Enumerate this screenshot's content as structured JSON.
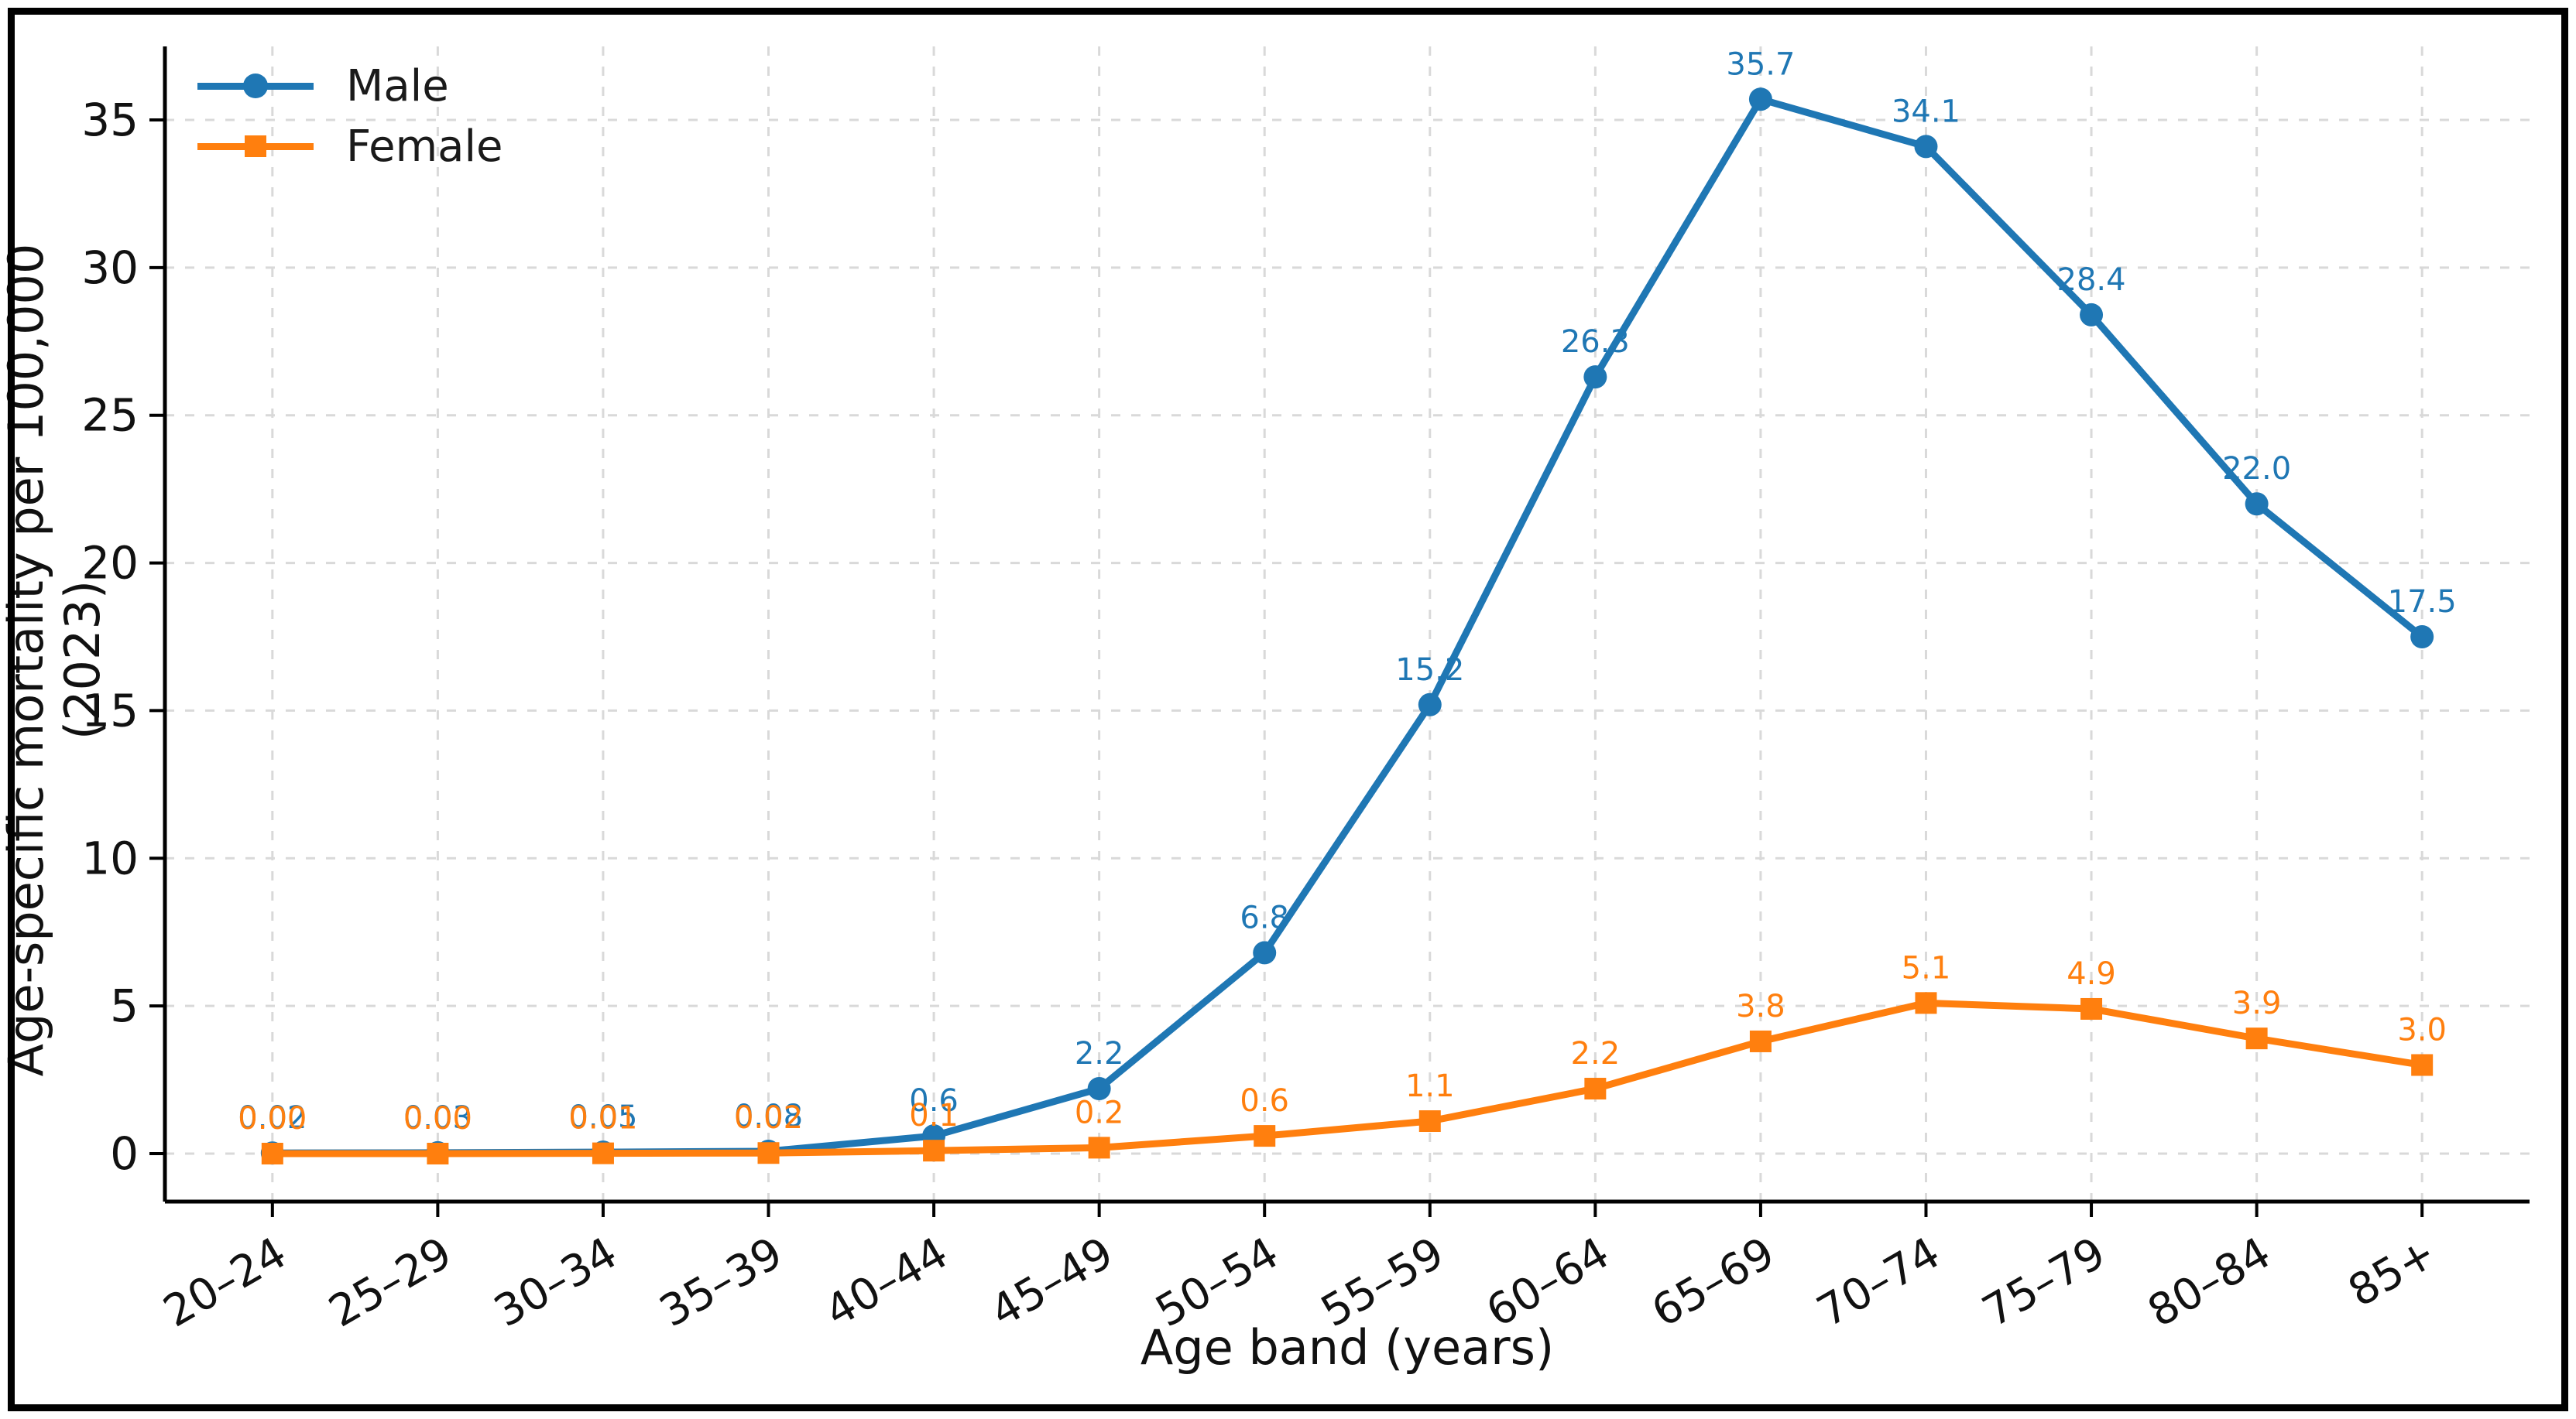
{
  "figure": {
    "border_color": "#000000",
    "background": "#ffffff",
    "grid_color": "#d9d9d9",
    "text_color": "#111111"
  },
  "chart_data": {
    "type": "line",
    "title": "",
    "xlabel": "Age band (years)",
    "ylabel": "Age-specific mortality per 100,000 (2023)",
    "categories": [
      "20–24",
      "25–29",
      "30–34",
      "35–39",
      "40–44",
      "45–49",
      "50–54",
      "55–59",
      "60–64",
      "65–69",
      "70–74",
      "75–79",
      "80–84",
      "85+"
    ],
    "yticks": [
      0,
      5,
      10,
      15,
      20,
      25,
      30,
      35
    ],
    "ylim": [
      -1.6,
      37.5
    ],
    "grid": "dashed-both-axes",
    "legend_position": "upper-left",
    "series": [
      {
        "name": "Male",
        "color": "#1f77b4",
        "marker": "circle",
        "values": [
          0.02,
          0.03,
          0.05,
          0.08,
          0.6,
          2.2,
          6.8,
          15.2,
          26.3,
          35.7,
          34.1,
          28.4,
          22.0,
          17.5
        ],
        "point_labels": [
          "0.02",
          "0.03",
          "0.05",
          "0.08",
          "0.6",
          "2.2",
          "6.8",
          "15.2",
          "26.3",
          "35.7",
          "34.1",
          "28.4",
          "22.0",
          "17.5"
        ]
      },
      {
        "name": "Female",
        "color": "#ff7f0e",
        "marker": "square",
        "values": [
          0.0,
          0.0,
          0.01,
          0.02,
          0.1,
          0.2,
          0.6,
          1.1,
          2.2,
          3.8,
          5.1,
          4.9,
          3.9,
          3.0
        ],
        "point_labels": [
          "0.00",
          "0.00",
          "0.01",
          "0.02",
          "0.1",
          "0.2",
          "0.6",
          "1.1",
          "2.2",
          "3.8",
          "5.1",
          "4.9",
          "3.9",
          "3.0"
        ]
      }
    ]
  }
}
